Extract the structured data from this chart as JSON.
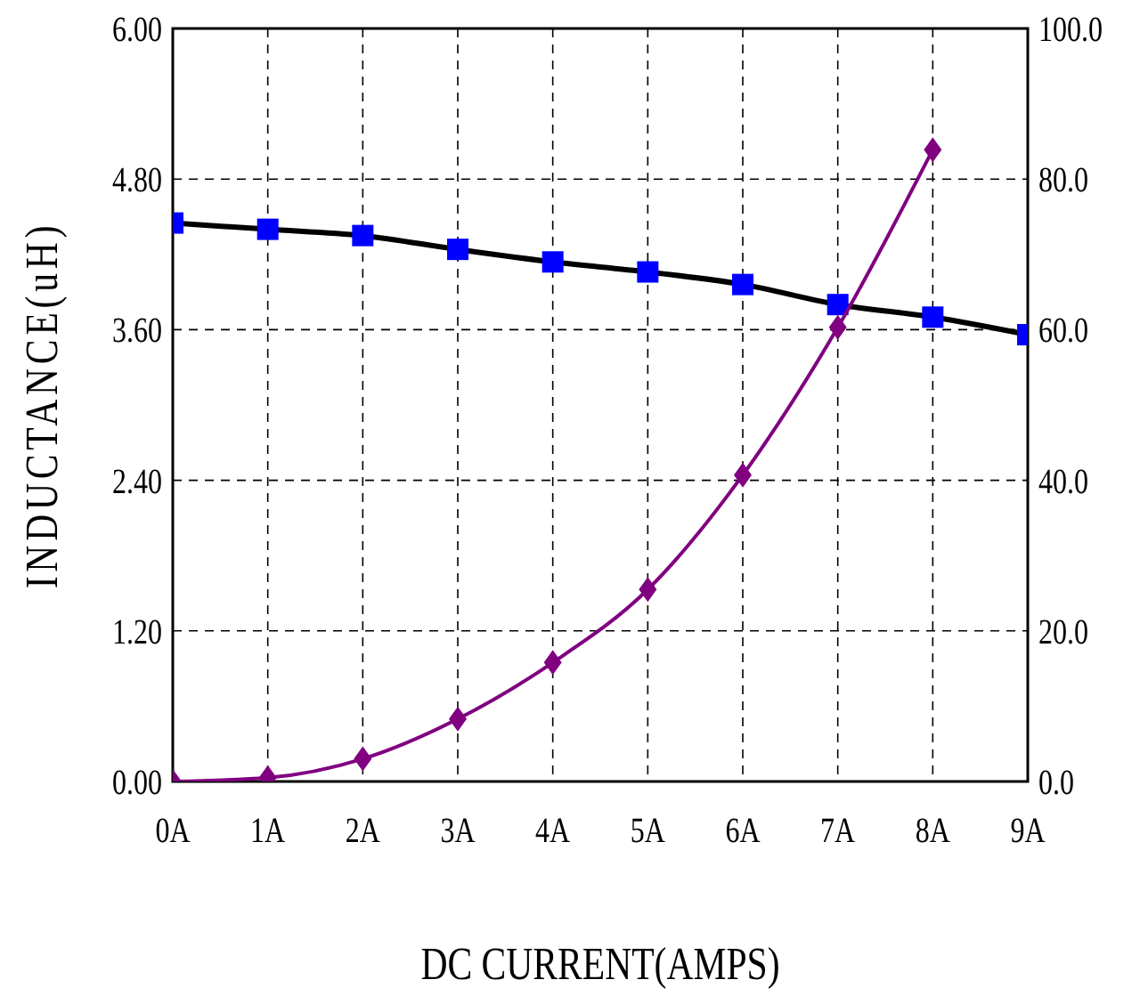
{
  "chart_data": {
    "type": "line",
    "xlabel": "DC CURRENT(AMPS)",
    "ylabel": "INDUCTANCE(uH)",
    "categories": [
      "0A",
      "1A",
      "2A",
      "3A",
      "4A",
      "5A",
      "6A",
      "7A",
      "8A",
      "9A"
    ],
    "series": [
      {
        "color": "#0000ff",
        "marker": "square",
        "values": [
          4.45,
          4.4,
          4.35,
          4.24,
          4.14,
          4.06,
          3.96,
          3.8,
          3.7,
          3.56
        ]
      },
      {
        "color": "#800080",
        "marker": "diamond",
        "axis": "y2",
        "values": [
          0,
          0.5,
          3,
          8.3,
          15.8,
          25.5,
          40.7,
          60.3,
          83.9,
          null
        ]
      }
    ],
    "ylim": [
      0,
      6
    ],
    "yticks": [
      {
        "value": 0,
        "label": "0.00"
      },
      {
        "value": 1.2,
        "label": "1.20"
      },
      {
        "value": 2.4,
        "label": "2.40"
      },
      {
        "value": 3.6,
        "label": "3.60"
      },
      {
        "value": 4.8,
        "label": "4.80"
      },
      {
        "value": 6,
        "label": "6.00"
      }
    ],
    "y2lim": [
      0,
      100
    ],
    "y2ticks": [
      {
        "value": 0,
        "label": "0.0"
      },
      {
        "value": 20,
        "label": "20.0"
      },
      {
        "value": 40,
        "label": "40.0"
      },
      {
        "value": 60,
        "label": "60.0"
      },
      {
        "value": 80,
        "label": "80.0"
      },
      {
        "value": 100,
        "label": "100.0"
      }
    ],
    "grid": true,
    "line_style": "solid"
  }
}
